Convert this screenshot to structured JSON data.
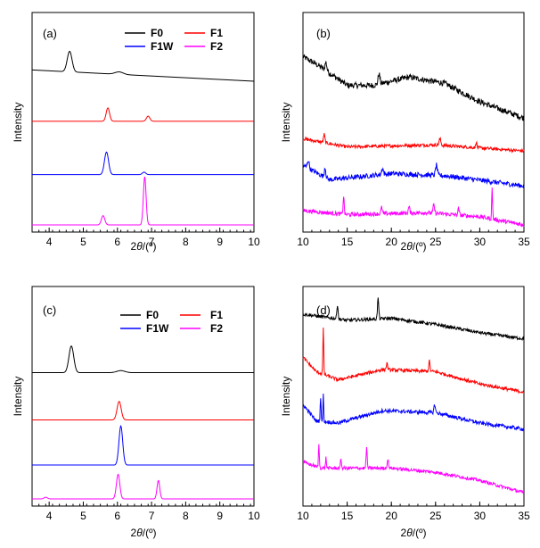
{
  "chart_data": [
    {
      "type": "line",
      "panel_label": "(a)",
      "xlabel_main": "2",
      "xlabel_italic": "θ",
      "xlabel_unit": "/(º)",
      "ylabel": "Intensity",
      "xlim": [
        3.5,
        10
      ],
      "xticks": [
        4,
        5,
        6,
        7,
        8,
        9,
        10
      ],
      "legend_position": "top-right",
      "series": [
        {
          "name": "F0",
          "color": "#000000",
          "offset": 0.7,
          "baseline": [
            [
              3.5,
              0.055
            ],
            [
              10,
              0.0
            ]
          ],
          "peaks": [
            {
              "x": 4.6,
              "h": 0.1,
              "w": 0.07
            },
            {
              "x": 6.05,
              "h": 0.012,
              "w": 0.12
            }
          ]
        },
        {
          "name": "F1",
          "color": "#ff0000",
          "offset": 0.505,
          "baseline": [
            [
              3.5,
              0.0
            ],
            [
              10,
              0.0
            ]
          ],
          "peaks": [
            {
              "x": 5.72,
              "h": 0.065,
              "w": 0.05
            },
            {
              "x": 6.9,
              "h": 0.025,
              "w": 0.05
            }
          ]
        },
        {
          "name": "F1W",
          "color": "#0000ff",
          "offset": 0.245,
          "baseline": [
            [
              3.5,
              0.0
            ],
            [
              10,
              0.0
            ]
          ],
          "peaks": [
            {
              "x": 5.68,
              "h": 0.11,
              "w": 0.06
            },
            {
              "x": 6.78,
              "h": 0.012,
              "w": 0.05
            }
          ]
        },
        {
          "name": "F2",
          "color": "#ff00ff",
          "offset": 0.0,
          "baseline": [
            [
              3.5,
              0.0
            ],
            [
              10,
              0.0
            ]
          ],
          "peaks": [
            {
              "x": 5.58,
              "h": 0.045,
              "w": 0.05
            },
            {
              "x": 6.8,
              "h": 0.235,
              "w": 0.04
            }
          ]
        }
      ]
    },
    {
      "type": "line",
      "panel_label": "(b)",
      "xlabel_main": "2",
      "xlabel_italic": "θ",
      "xlabel_unit": "/(º)",
      "ylabel": "Intensity",
      "xlim": [
        10,
        35
      ],
      "xticks": [
        10,
        15,
        20,
        25,
        30,
        35
      ],
      "series": [
        {
          "name": "F0",
          "color": "#000000",
          "offset": 0.52,
          "noise": 0.014,
          "baseline": [
            [
              10,
              0.3
            ],
            [
              12,
              0.25
            ],
            [
              15,
              0.16
            ],
            [
              18,
              0.16
            ],
            [
              22,
              0.2
            ],
            [
              26,
              0.17
            ],
            [
              30,
              0.08
            ],
            [
              35,
              0.0
            ]
          ],
          "peaks": [
            {
              "x": 12.6,
              "h": 0.04,
              "w": 0.1
            },
            {
              "x": 18.6,
              "h": 0.05,
              "w": 0.1
            }
          ]
        },
        {
          "name": "F1",
          "color": "#ff0000",
          "offset": 0.36,
          "noise": 0.008,
          "baseline": [
            [
              10,
              0.06
            ],
            [
              15,
              0.02
            ],
            [
              25,
              0.03
            ],
            [
              35,
              0.0
            ]
          ],
          "peaks": [
            {
              "x": 12.4,
              "h": 0.04,
              "w": 0.08
            },
            {
              "x": 25.5,
              "h": 0.03,
              "w": 0.1
            },
            {
              "x": 29.6,
              "h": 0.03,
              "w": 0.06
            }
          ]
        },
        {
          "name": "F1W",
          "color": "#0000ff",
          "offset": 0.19,
          "noise": 0.012,
          "baseline": [
            [
              10,
              0.1
            ],
            [
              13,
              0.03
            ],
            [
              20,
              0.06
            ],
            [
              26,
              0.05
            ],
            [
              35,
              0.0
            ]
          ],
          "peaks": [
            {
              "x": 10.6,
              "h": 0.04,
              "w": 0.1
            },
            {
              "x": 12.5,
              "h": 0.05,
              "w": 0.08
            },
            {
              "x": 19.0,
              "h": 0.03,
              "w": 0.1
            },
            {
              "x": 25.1,
              "h": 0.05,
              "w": 0.1
            }
          ]
        },
        {
          "name": "F2",
          "color": "#ff00ff",
          "offset": 0.0,
          "noise": 0.01,
          "baseline": [
            [
              10,
              0.07
            ],
            [
              15,
              0.05
            ],
            [
              24,
              0.06
            ],
            [
              30,
              0.04
            ],
            [
              35,
              0.0
            ]
          ],
          "peaks": [
            {
              "x": 14.6,
              "h": 0.09,
              "w": 0.06
            },
            {
              "x": 18.9,
              "h": 0.03,
              "w": 0.08
            },
            {
              "x": 22.0,
              "h": 0.03,
              "w": 0.08
            },
            {
              "x": 24.8,
              "h": 0.04,
              "w": 0.08
            },
            {
              "x": 27.6,
              "h": 0.03,
              "w": 0.08
            },
            {
              "x": 31.4,
              "h": 0.15,
              "w": 0.05
            }
          ]
        }
      ]
    },
    {
      "type": "line",
      "panel_label": "(c)",
      "xlabel_main": "2",
      "xlabel_italic": "θ",
      "xlabel_unit": "/(º)",
      "ylabel": "Intensity",
      "xlim": [
        3.5,
        10
      ],
      "xticks": [
        4,
        5,
        6,
        7,
        8,
        9,
        10
      ],
      "legend_position": "top-right",
      "series": [
        {
          "name": "F0",
          "color": "#000000",
          "offset": 0.615,
          "baseline": [
            [
              3.5,
              0.0
            ],
            [
              10,
              0.0
            ]
          ],
          "peaks": [
            {
              "x": 4.65,
              "h": 0.13,
              "w": 0.07
            },
            {
              "x": 6.1,
              "h": 0.01,
              "w": 0.12
            }
          ]
        },
        {
          "name": "F1",
          "color": "#ff0000",
          "offset": 0.385,
          "baseline": [
            [
              3.5,
              0.0
            ],
            [
              10,
              0.0
            ]
          ],
          "peaks": [
            {
              "x": 6.05,
              "h": 0.09,
              "w": 0.06
            }
          ]
        },
        {
          "name": "F1W",
          "color": "#0000ff",
          "offset": 0.165,
          "baseline": [
            [
              3.5,
              0.0
            ],
            [
              10,
              0.0
            ]
          ],
          "peaks": [
            {
              "x": 6.1,
              "h": 0.19,
              "w": 0.055
            }
          ]
        },
        {
          "name": "F2",
          "color": "#ff00ff",
          "offset": 0.0,
          "baseline": [
            [
              3.5,
              0.0
            ],
            [
              10,
              0.0
            ]
          ],
          "peaks": [
            {
              "x": 3.9,
              "h": 0.008,
              "w": 0.05
            },
            {
              "x": 6.02,
              "h": 0.12,
              "w": 0.05
            },
            {
              "x": 7.2,
              "h": 0.09,
              "w": 0.04
            }
          ]
        }
      ]
    },
    {
      "type": "line",
      "panel_label": "(d)",
      "xlabel_main": "2",
      "xlabel_italic": "θ",
      "xlabel_unit": "/(º)",
      "ylabel": "Intensity",
      "xlim": [
        10,
        35
      ],
      "xticks": [
        10,
        15,
        20,
        25,
        30,
        35
      ],
      "series": [
        {
          "name": "F0",
          "color": "#000000",
          "offset": 0.78,
          "noise": 0.008,
          "baseline": [
            [
              10,
              0.12
            ],
            [
              15,
              0.09
            ],
            [
              20,
              0.1
            ],
            [
              25,
              0.07
            ],
            [
              30,
              0.03
            ],
            [
              35,
              0.0
            ]
          ],
          "peaks": [
            {
              "x": 13.9,
              "h": 0.07,
              "w": 0.07
            },
            {
              "x": 18.5,
              "h": 0.1,
              "w": 0.07
            }
          ]
        },
        {
          "name": "F1",
          "color": "#ff0000",
          "offset": 0.52,
          "noise": 0.008,
          "baseline": [
            [
              10,
              0.17
            ],
            [
              11.5,
              0.1
            ],
            [
              14,
              0.06
            ],
            [
              19,
              0.11
            ],
            [
              25,
              0.1
            ],
            [
              30,
              0.04
            ],
            [
              35,
              0.0
            ]
          ],
          "peaks": [
            {
              "x": 12.3,
              "h": 0.22,
              "w": 0.05
            },
            {
              "x": 19.5,
              "h": 0.03,
              "w": 0.08
            },
            {
              "x": 24.3,
              "h": 0.05,
              "w": 0.07
            }
          ]
        },
        {
          "name": "F1W",
          "color": "#0000ff",
          "offset": 0.34,
          "noise": 0.009,
          "baseline": [
            [
              10,
              0.12
            ],
            [
              11.5,
              0.04
            ],
            [
              14,
              0.03
            ],
            [
              19,
              0.09
            ],
            [
              25,
              0.08
            ],
            [
              30,
              0.03
            ],
            [
              35,
              0.0
            ]
          ],
          "peaks": [
            {
              "x": 12.0,
              "h": 0.12,
              "w": 0.05
            },
            {
              "x": 12.3,
              "h": 0.14,
              "w": 0.04
            },
            {
              "x": 24.9,
              "h": 0.04,
              "w": 0.08
            }
          ]
        },
        {
          "name": "F2",
          "color": "#ff00ff",
          "offset": 0.07,
          "noise": 0.008,
          "baseline": [
            [
              10,
              0.11
            ],
            [
              12,
              0.08
            ],
            [
              16,
              0.08
            ],
            [
              20,
              0.08
            ],
            [
              25,
              0.06
            ],
            [
              30,
              0.02
            ],
            [
              35,
              -0.04
            ]
          ],
          "peaks": [
            {
              "x": 11.8,
              "h": 0.11,
              "w": 0.05
            },
            {
              "x": 12.6,
              "h": 0.05,
              "w": 0.05
            },
            {
              "x": 14.3,
              "h": 0.05,
              "w": 0.05
            },
            {
              "x": 17.2,
              "h": 0.1,
              "w": 0.06
            },
            {
              "x": 19.6,
              "h": 0.04,
              "w": 0.08
            }
          ]
        }
      ]
    }
  ]
}
